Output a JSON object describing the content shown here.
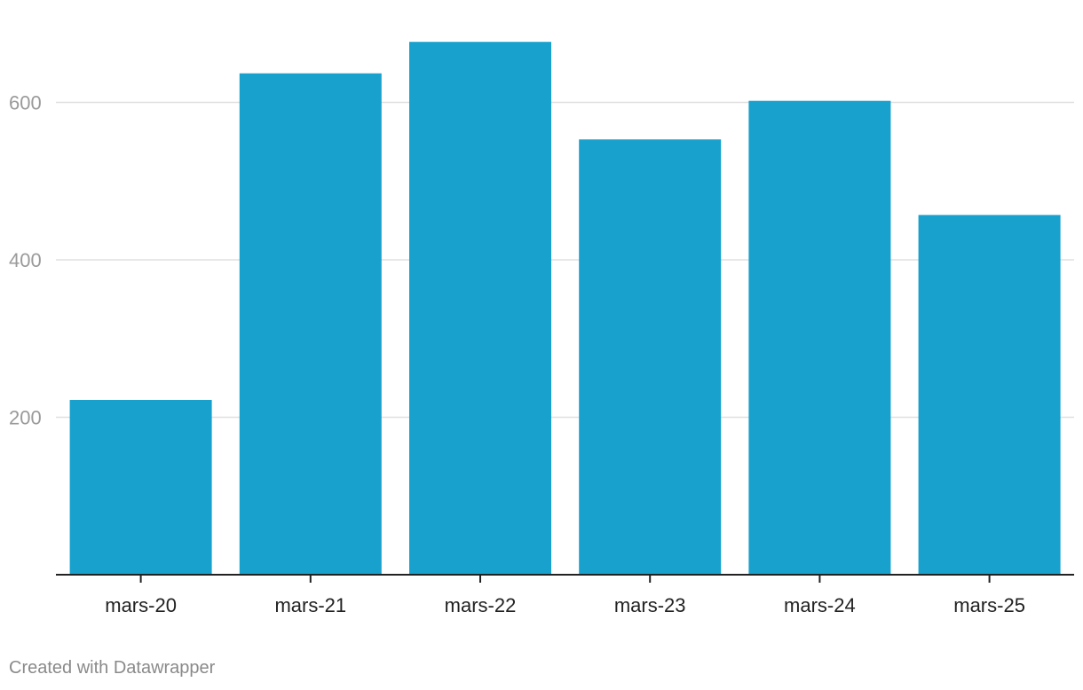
{
  "chart_data": {
    "type": "bar",
    "categories": [
      "mars-20",
      "mars-21",
      "mars-22",
      "mars-23",
      "mars-24",
      "mars-25"
    ],
    "values": [
      222,
      637,
      677,
      553,
      602,
      457
    ],
    "ylim": [
      0,
      700
    ],
    "y_ticks": [
      200,
      400,
      600
    ],
    "grid": true,
    "bar_color": "#18a1cd"
  },
  "footer": {
    "credit": "Created with Datawrapper"
  }
}
